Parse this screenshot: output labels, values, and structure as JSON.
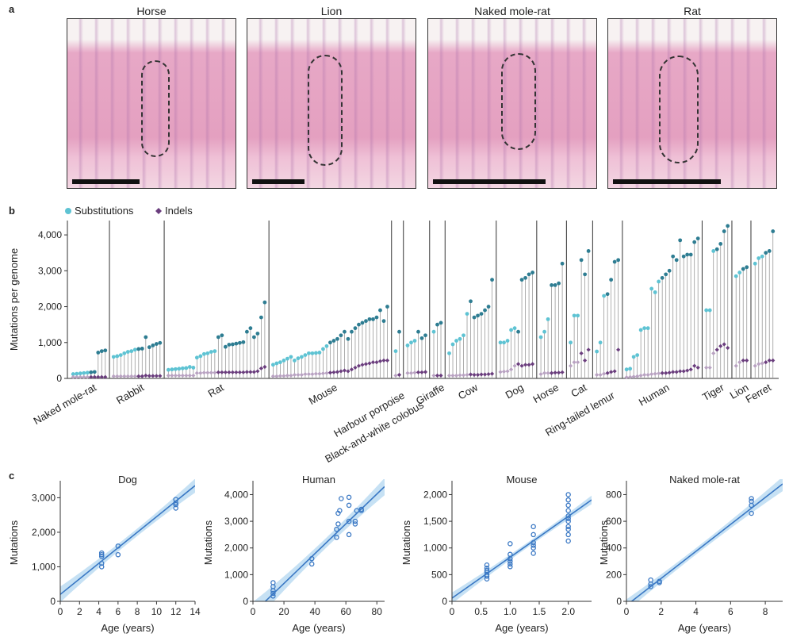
{
  "panel_labels": {
    "a": "a",
    "b": "b",
    "c": "c"
  },
  "histology": [
    {
      "title": "Horse"
    },
    {
      "title": "Lion"
    },
    {
      "title": "Naked mole-rat"
    },
    {
      "title": "Rat"
    }
  ],
  "legend": {
    "substitutions": "Substitutions",
    "indels": "Indels"
  },
  "colors": {
    "sub_light": "#5ec3d3",
    "sub_dark": "#2e7d92",
    "indel_light": "#b9a3c2",
    "indel_dark": "#6a3d7d",
    "fit": "#3a78c4",
    "ci": "#bcdcf2"
  },
  "chart_data": [
    {
      "type": "scatter",
      "title": "",
      "xlabel": "",
      "ylabel": "Mutations per genome",
      "ylim": [
        0,
        4400
      ],
      "yticks": [
        0,
        1000,
        2000,
        3000,
        4000
      ],
      "yticklabels": [
        "0",
        "1,000",
        "2,000",
        "3,000",
        "4,000"
      ],
      "series": [
        {
          "name": "Substitutions",
          "species": [
            {
              "name": "Naked mole-rat",
              "values": [
                120,
                130,
                140,
                150,
                160,
                170,
                180,
                720,
                760,
                780
              ]
            },
            {
              "name": "Rabbit",
              "values": [
                600,
                620,
                650,
                700,
                740,
                760,
                800,
                820,
                830,
                1150,
                870,
                920,
                960,
                990
              ]
            },
            {
              "name": "Rat",
              "values": [
                240,
                250,
                260,
                270,
                280,
                290,
                320,
                300,
                580,
                620,
                680,
                700,
                740,
                760,
                1150,
                1200,
                880,
                940,
                950,
                970,
                990,
                1010,
                1300,
                1400,
                1150,
                1250,
                1700,
                2120
              ]
            },
            {
              "name": "Mouse",
              "values": [
                380,
                420,
                450,
                500,
                550,
                600,
                500,
                560,
                600,
                650,
                700,
                700,
                710,
                720,
                820,
                900,
                1000,
                1050,
                1100,
                1200,
                1300,
                1100,
                1300,
                1400,
                1500,
                1550,
                1600,
                1650,
                1650,
                1700,
                1900,
                1600,
                2000
              ]
            },
            {
              "name": "Harbour porpoise",
              "values": [
                760,
                1300
              ]
            },
            {
              "name": "Black-and-white colobus",
              "values": [
                920,
                1000,
                1050,
                1300,
                1120,
                1200
              ]
            },
            {
              "name": "Giraffe",
              "values": [
                1300,
                1500,
                1550
              ]
            },
            {
              "name": "Cow",
              "values": [
                700,
                950,
                1050,
                1100,
                1200,
                1800,
                2150,
                1700,
                1750,
                1800,
                1900,
                2000,
                2750
              ]
            },
            {
              "name": "Dog",
              "values": [
                1000,
                1000,
                1050,
                1350,
                1400,
                1300,
                2750,
                2800,
                2900,
                2950
              ]
            },
            {
              "name": "Horse",
              "values": [
                1150,
                1300,
                1650,
                2600,
                2600,
                2650,
                3200
              ]
            },
            {
              "name": "Cat",
              "values": [
                1000,
                1750,
                1750,
                3300,
                2900,
                3550
              ]
            },
            {
              "name": "Ring-tailed lemur",
              "values": [
                750,
                1000,
                2300,
                2350,
                2750,
                3250,
                3300
              ]
            },
            {
              "name": "Human",
              "values": [
                250,
                270,
                600,
                650,
                1350,
                1400,
                1400,
                2500,
                2400,
                2700,
                2800,
                2900,
                3000,
                3400,
                3300,
                3850,
                3400,
                3450,
                3450,
                3800,
                3900
              ]
            },
            {
              "name": "Tiger",
              "values": [
                1900,
                1900,
                3550,
                3600,
                3750,
                4100,
                4250
              ]
            },
            {
              "name": "Lion",
              "values": [
                2850,
                2950,
                3050,
                3100
              ]
            },
            {
              "name": "Ferret",
              "values": [
                3200,
                3350,
                3400,
                3500,
                3550,
                4100
              ]
            }
          ]
        },
        {
          "name": "Indels",
          "species": [
            {
              "name": "Naked mole-rat",
              "values": [
                40,
                40,
                40,
                40,
                40,
                40,
                40,
                40,
                40,
                40
              ]
            },
            {
              "name": "Rabbit",
              "values": [
                60,
                60,
                60,
                60,
                60,
                60,
                60,
                60,
                60,
                80,
                70,
                70,
                70,
                70
              ]
            },
            {
              "name": "Rat",
              "values": [
                80,
                80,
                80,
                80,
                80,
                80,
                80,
                80,
                150,
                150,
                160,
                160,
                160,
                160,
                170,
                170,
                170,
                170,
                170,
                170,
                170,
                170,
                180,
                180,
                180,
                200,
                280,
                320
              ]
            },
            {
              "name": "Mouse",
              "values": [
                60,
                60,
                70,
                70,
                80,
                80,
                100,
                100,
                100,
                120,
                120,
                120,
                130,
                130,
                140,
                150,
                160,
                170,
                180,
                200,
                220,
                200,
                250,
                300,
                350,
                380,
                400,
                420,
                450,
                450,
                480,
                500,
                500
              ]
            },
            {
              "name": "Harbour porpoise",
              "values": [
                80,
                100
              ]
            },
            {
              "name": "Black-and-white colobus",
              "values": [
                150,
                150,
                160,
                170,
                170,
                180
              ]
            },
            {
              "name": "Giraffe",
              "values": [
                80,
                80,
                80
              ]
            },
            {
              "name": "Cow",
              "values": [
                80,
                80,
                80,
                90,
                90,
                100,
                110,
                100,
                100,
                110,
                110,
                120,
                130
              ]
            },
            {
              "name": "Dog",
              "values": [
                180,
                190,
                200,
                250,
                350,
                400,
                350,
                380,
                380,
                400
              ]
            },
            {
              "name": "Horse",
              "values": [
                120,
                150,
                150,
                150,
                160,
                160,
                170
              ]
            },
            {
              "name": "Cat",
              "values": [
                350,
                450,
                450,
                700,
                500,
                800
              ]
            },
            {
              "name": "Ring-tailed lemur",
              "values": [
                100,
                100,
                130,
                150,
                180,
                200,
                800
              ]
            },
            {
              "name": "Human",
              "values": [
                30,
                40,
                50,
                60,
                80,
                100,
                100,
                120,
                130,
                140,
                150,
                150,
                160,
                180,
                180,
                200,
                200,
                220,
                250,
                350,
                300
              ]
            },
            {
              "name": "Tiger",
              "values": [
                300,
                300,
                700,
                800,
                900,
                950,
                850
              ]
            },
            {
              "name": "Lion",
              "values": [
                350,
                450,
                500,
                500
              ]
            },
            {
              "name": "Ferret",
              "values": [
                350,
                400,
                420,
                450,
                500,
                500
              ]
            }
          ]
        }
      ]
    },
    {
      "type": "scatter",
      "title": "Dog",
      "xlabel": "Age (years)",
      "ylabel": "Mutations",
      "xlim": [
        0,
        14
      ],
      "ylim": [
        0,
        3400
      ],
      "xticks": [
        "0",
        "2",
        "4",
        "6",
        "8",
        "10",
        "12",
        "14"
      ],
      "yticks": [
        "0",
        "1,000",
        "2,000",
        "3,000"
      ],
      "x": [
        4.3,
        4.3,
        4.3,
        4.3,
        4.3,
        6,
        6,
        12,
        12,
        12,
        12
      ],
      "y": [
        1000,
        1100,
        1300,
        1350,
        1400,
        1350,
        1600,
        2700,
        2800,
        2850,
        2950
      ],
      "fit": {
        "x": [
          0,
          14
        ],
        "y": [
          200,
          3350
        ]
      }
    },
    {
      "type": "scatter",
      "title": "Human",
      "xlabel": "Age (years)",
      "ylabel": "Mutations",
      "xlim": [
        0,
        85
      ],
      "ylim": [
        0,
        4400
      ],
      "xticks": [
        "0",
        "20",
        "40",
        "60",
        "80"
      ],
      "yticks": [
        "0",
        "1,000",
        "2,000",
        "3,000",
        "4,000"
      ],
      "x": [
        13,
        13,
        13,
        13,
        13,
        38,
        38,
        54,
        54,
        55,
        55,
        56,
        57,
        62,
        62,
        62,
        62,
        66,
        66,
        67,
        70,
        70
      ],
      "y": [
        200,
        300,
        400,
        550,
        700,
        1400,
        1600,
        2400,
        2700,
        2900,
        3300,
        3400,
        3850,
        2500,
        3000,
        3600,
        3900,
        2900,
        3000,
        3400,
        3400,
        3450
      ],
      "fit": {
        "x": [
          8,
          85
        ],
        "y": [
          0,
          4300
        ]
      }
    },
    {
      "type": "scatter",
      "title": "Mouse",
      "xlabel": "Age (years)",
      "ylabel": "Mutations",
      "xlim": [
        0,
        2.4
      ],
      "ylim": [
        0,
        2200
      ],
      "xticks": [
        "0",
        "0.5",
        "1.0",
        "1.5",
        "2.0"
      ],
      "yticks": [
        "0",
        "500",
        "1,000",
        "1,500",
        "2,000"
      ],
      "x": [
        0.6,
        0.6,
        0.6,
        0.6,
        0.6,
        0.6,
        0.6,
        1.0,
        1.0,
        1.0,
        1.0,
        1.0,
        1.0,
        1.4,
        1.4,
        1.4,
        1.4,
        1.4,
        1.4,
        2.0,
        2.0,
        2.0,
        2.0,
        2.0,
        2.0,
        2.0,
        2.0,
        2.0,
        2.0,
        2.0
      ],
      "y": [
        420,
        470,
        500,
        550,
        580,
        620,
        680,
        650,
        700,
        750,
        800,
        880,
        1080,
        900,
        1000,
        1050,
        1100,
        1250,
        1400,
        1130,
        1250,
        1350,
        1400,
        1500,
        1550,
        1600,
        1700,
        1800,
        1900,
        2000
      ],
      "fit": {
        "x": [
          0,
          2.4
        ],
        "y": [
          60,
          1900
        ]
      }
    },
    {
      "type": "scatter",
      "title": "Naked mole-rat",
      "xlabel": "Age (years)",
      "ylabel": "Mutations",
      "xlim": [
        0,
        9
      ],
      "ylim": [
        0,
        880
      ],
      "xticks": [
        "0",
        "2",
        "4",
        "6",
        "8"
      ],
      "yticks": [
        "0",
        "200",
        "400",
        "600",
        "800"
      ],
      "x": [
        1.4,
        1.4,
        1.4,
        1.9,
        1.9,
        7.2,
        7.2,
        7.2,
        7.2
      ],
      "y": [
        110,
        130,
        160,
        140,
        150,
        660,
        720,
        750,
        770
      ],
      "fit": {
        "x": [
          0.3,
          9
        ],
        "y": [
          0,
          880
        ]
      }
    }
  ]
}
